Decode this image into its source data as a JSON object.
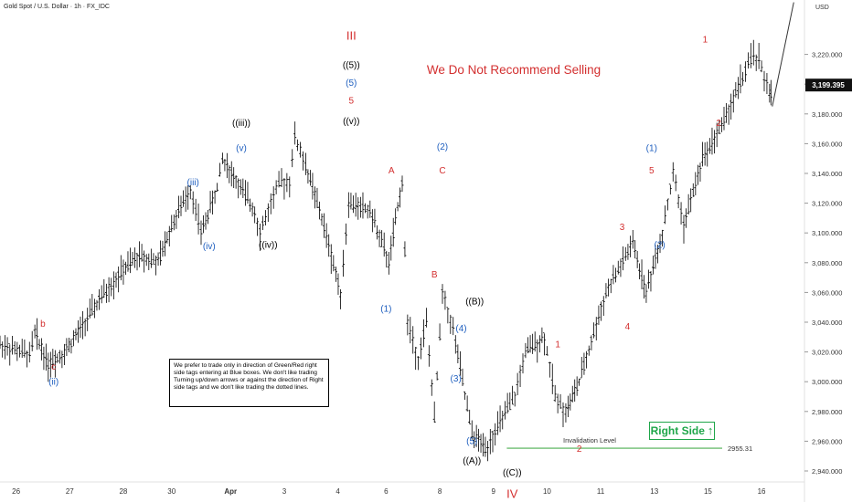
{
  "header": {
    "title": "Gold Spot / U.S. Dollar · 1h · FX_IDC",
    "currency": "USD"
  },
  "headline": "We Do Not Recommend Selling",
  "note_box": "We prefer to trade only in direction of Green/Red right side tags entering at Blue boxes. We don't like trading Turning up/down arrows or against the direction of Right side tags and we don't like trading the dotted lines.",
  "right_side_tag": {
    "label": "Right Side",
    "arrow": "up-arrow-icon",
    "color": "#1fa64a"
  },
  "invalidation": {
    "label": "Invalidation Level",
    "value": 2955.31,
    "value_label": "2955.31",
    "color": "#4caf50"
  },
  "colors": {
    "red": "#d32f2f",
    "blue": "#1f5fbf",
    "black": "#000000",
    "bar": "#000000"
  },
  "chart_data": {
    "type": "line",
    "title": "Gold Spot / U.S. Dollar · 1h · FX_IDC",
    "ylim": [
      2930,
      3260
    ],
    "yticks": [
      2940,
      2960,
      2980,
      3000,
      3020,
      3040,
      3060,
      3080,
      3100,
      3120,
      3140,
      3160,
      3180,
      3200,
      3220
    ],
    "ytick_labels": [
      "2,940.000",
      "2,960.000",
      "2,980.000",
      "3,000.000",
      "3,020.000",
      "3,040.000",
      "3,060.000",
      "3,080.000",
      "3,100.000",
      "3,120.000",
      "3,140.000",
      "3,160.000",
      "3,180.000",
      "3,200.000",
      "3,220.000"
    ],
    "current_price": 3199.395,
    "current_price_label": "3,199.395",
    "x_ticks": [
      {
        "x": 0.3,
        "label": "26"
      },
      {
        "x": 1.3,
        "label": "27"
      },
      {
        "x": 2.3,
        "label": "28"
      },
      {
        "x": 3.2,
        "label": "30"
      },
      {
        "x": 4.3,
        "label": "Apr"
      },
      {
        "x": 5.3,
        "label": "3"
      },
      {
        "x": 6.3,
        "label": "4"
      },
      {
        "x": 7.2,
        "label": "6"
      },
      {
        "x": 8.2,
        "label": "8"
      },
      {
        "x": 9.2,
        "label": "9"
      },
      {
        "x": 10.2,
        "label": "10"
      },
      {
        "x": 11.2,
        "label": "11"
      },
      {
        "x": 12.2,
        "label": "13"
      },
      {
        "x": 13.2,
        "label": "15"
      },
      {
        "x": 14.2,
        "label": "16"
      }
    ],
    "price_path": [
      [
        0.0,
        3025
      ],
      [
        0.55,
        3018
      ],
      [
        0.65,
        3033
      ],
      [
        0.9,
        3012
      ],
      [
        1.2,
        3020
      ],
      [
        1.5,
        3035
      ],
      [
        1.85,
        3055
      ],
      [
        2.3,
        3075
      ],
      [
        2.6,
        3085
      ],
      [
        2.95,
        3080
      ],
      [
        3.2,
        3105
      ],
      [
        3.55,
        3130
      ],
      [
        3.75,
        3100
      ],
      [
        4.05,
        3130
      ],
      [
        4.15,
        3150
      ],
      [
        4.4,
        3135
      ],
      [
        4.75,
        3115
      ],
      [
        4.85,
        3100
      ],
      [
        5.05,
        3120
      ],
      [
        5.2,
        3133
      ],
      [
        5.4,
        3135
      ],
      [
        5.5,
        3165
      ],
      [
        5.7,
        3145
      ],
      [
        6.0,
        3110
      ],
      [
        6.35,
        3060
      ],
      [
        6.5,
        3120
      ],
      [
        6.9,
        3115
      ],
      [
        7.25,
        3080
      ],
      [
        7.5,
        3135
      ],
      [
        7.6,
        3040
      ],
      [
        7.8,
        3015
      ],
      [
        7.95,
        3040
      ],
      [
        8.1,
        2975
      ],
      [
        8.25,
        3060
      ],
      [
        8.45,
        3035
      ],
      [
        8.8,
        2965
      ],
      [
        9.05,
        2955
      ],
      [
        9.6,
        2990
      ],
      [
        9.8,
        3020
      ],
      [
        10.15,
        3030
      ],
      [
        10.35,
        2990
      ],
      [
        10.55,
        2980
      ],
      [
        10.8,
        3000
      ],
      [
        11.3,
        3060
      ],
      [
        11.8,
        3093
      ],
      [
        12.05,
        3060
      ],
      [
        12.35,
        3100
      ],
      [
        12.55,
        3140
      ],
      [
        12.75,
        3105
      ],
      [
        13.1,
        3150
      ],
      [
        13.5,
        3175
      ],
      [
        13.85,
        3205
      ],
      [
        14.05,
        3220
      ],
      [
        14.15,
        3215
      ],
      [
        14.35,
        3195
      ],
      [
        14.4,
        3192
      ]
    ],
    "projection": [
      [
        14.4,
        3185
      ],
      [
        14.8,
        3255
      ]
    ],
    "wave_labels": [
      {
        "x": 0.8,
        "y": 3037,
        "text": "b",
        "color": "red"
      },
      {
        "x": 1.0,
        "y": 3008,
        "text": "c",
        "color": "red"
      },
      {
        "x": 1.0,
        "y": 2998,
        "text": "(ii)",
        "color": "blue"
      },
      {
        "x": 3.6,
        "y": 3132,
        "text": "(iii)",
        "color": "blue"
      },
      {
        "x": 3.9,
        "y": 3089,
        "text": "(iv)",
        "color": "blue"
      },
      {
        "x": 4.5,
        "y": 3172,
        "text": "((iii))",
        "color": "black"
      },
      {
        "x": 4.5,
        "y": 3155,
        "text": "(v)",
        "color": "blue"
      },
      {
        "x": 5.0,
        "y": 3090,
        "text": "((iv))",
        "color": "black"
      },
      {
        "x": 6.55,
        "y": 3230,
        "text": "III",
        "color": "red"
      },
      {
        "x": 6.55,
        "y": 3211,
        "text": "((5))",
        "color": "black"
      },
      {
        "x": 6.55,
        "y": 3199,
        "text": "(5)",
        "color": "blue"
      },
      {
        "x": 6.55,
        "y": 3187,
        "text": "5",
        "color": "red"
      },
      {
        "x": 6.55,
        "y": 3173,
        "text": "((v))",
        "color": "black"
      },
      {
        "x": 7.3,
        "y": 3140,
        "text": "A",
        "color": "red"
      },
      {
        "x": 7.2,
        "y": 3047,
        "text": "(1)",
        "color": "blue"
      },
      {
        "x": 8.1,
        "y": 3070,
        "text": "B",
        "color": "red"
      },
      {
        "x": 8.25,
        "y": 3156,
        "text": "(2)",
        "color": "blue"
      },
      {
        "x": 8.25,
        "y": 3140,
        "text": "C",
        "color": "red"
      },
      {
        "x": 8.6,
        "y": 3034,
        "text": "(4)",
        "color": "blue"
      },
      {
        "x": 8.85,
        "y": 3052,
        "text": "((B))",
        "color": "black"
      },
      {
        "x": 8.5,
        "y": 3000,
        "text": "(3)",
        "color": "blue"
      },
      {
        "x": 8.8,
        "y": 2958,
        "text": "(5)",
        "color": "blue"
      },
      {
        "x": 8.8,
        "y": 2945,
        "text": "((A))",
        "color": "black"
      },
      {
        "x": 9.55,
        "y": 2937,
        "text": "((C))",
        "color": "black"
      },
      {
        "x": 9.55,
        "y": 2922,
        "text": "IV",
        "color": "red"
      },
      {
        "x": 10.4,
        "y": 3023,
        "text": "1",
        "color": "red"
      },
      {
        "x": 10.8,
        "y": 2953,
        "text": "2",
        "color": "red"
      },
      {
        "x": 11.6,
        "y": 3102,
        "text": "3",
        "color": "red"
      },
      {
        "x": 11.7,
        "y": 3035,
        "text": "4",
        "color": "red"
      },
      {
        "x": 12.15,
        "y": 3140,
        "text": "5",
        "color": "red"
      },
      {
        "x": 12.15,
        "y": 3155,
        "text": "(1)",
        "color": "blue"
      },
      {
        "x": 12.3,
        "y": 3090,
        "text": "(2)",
        "color": "blue"
      },
      {
        "x": 13.15,
        "y": 3228,
        "text": "1",
        "color": "red"
      },
      {
        "x": 13.4,
        "y": 3172,
        "text": "2",
        "color": "red"
      }
    ]
  }
}
